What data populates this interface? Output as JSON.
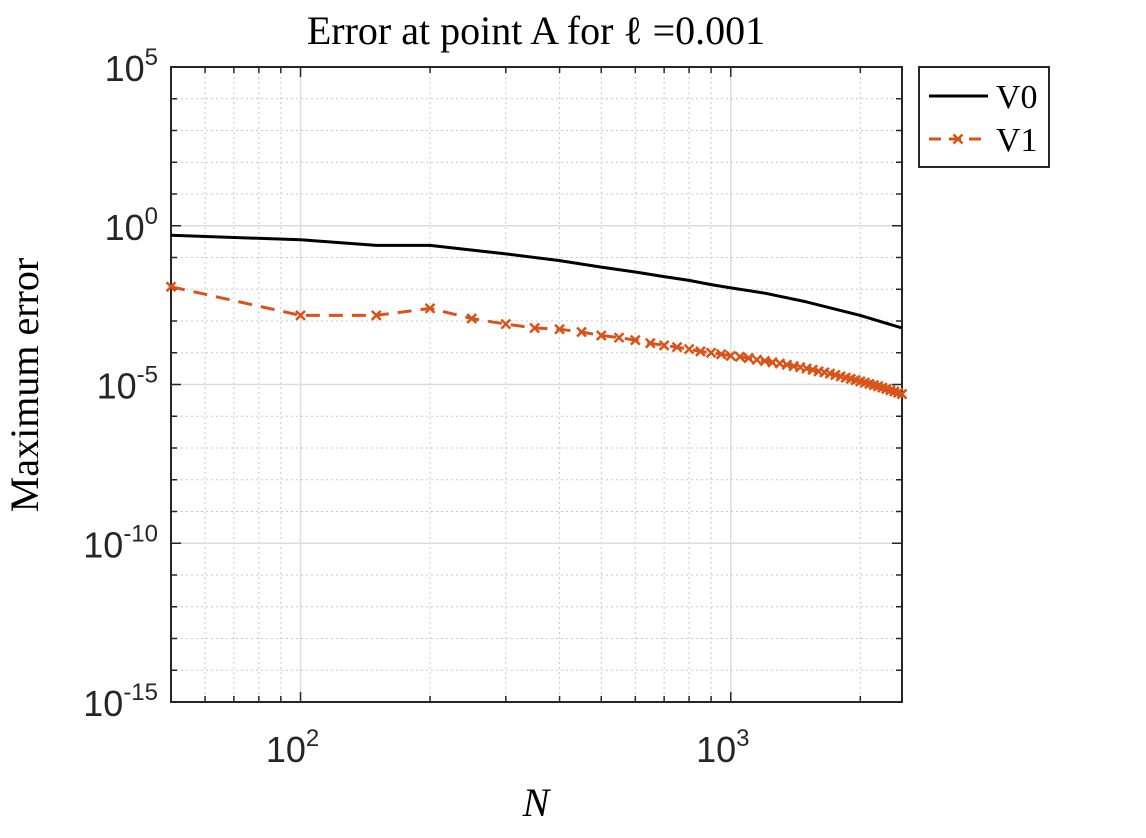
{
  "chart_data": {
    "type": "line",
    "title": "Error at point A for ℓ =0.001",
    "xlabel": "N",
    "ylabel": "Maximum error",
    "xscale": "log",
    "yscale": "log",
    "xlim": [
      50,
      2500
    ],
    "ylim": [
      1e-15,
      100000
    ],
    "grid": true,
    "legend_position": "outside-top-right",
    "x_ticks": [
      {
        "value": 100,
        "base": "10",
        "exp": "2"
      },
      {
        "value": 1000,
        "base": "10",
        "exp": "3"
      }
    ],
    "y_ticks": [
      {
        "value": 1e-15,
        "base": "10",
        "exp": "-15"
      },
      {
        "value": 1e-10,
        "base": "10",
        "exp": "-10"
      },
      {
        "value": 1e-05,
        "base": "10",
        "exp": "-5"
      },
      {
        "value": 1,
        "base": "10",
        "exp": "0"
      },
      {
        "value": 100000,
        "base": "10",
        "exp": "5"
      }
    ],
    "series": [
      {
        "name": "V0",
        "color": "#000000",
        "line": "solid",
        "marker": "none",
        "x": [
          50,
          100,
          150,
          200,
          300,
          400,
          500,
          600,
          700,
          800,
          900,
          1000,
          1200,
          1500,
          2000,
          2500
        ],
        "y": [
          0.5,
          0.36,
          0.24,
          0.24,
          0.13,
          0.08,
          0.05,
          0.035,
          0.025,
          0.019,
          0.014,
          0.011,
          0.0075,
          0.004,
          0.0015,
          0.0006
        ]
      },
      {
        "name": "V1",
        "color": "#d95319",
        "line": "dashed",
        "marker": "x",
        "x": [
          50,
          100,
          150,
          200,
          250,
          300,
          350,
          400,
          450,
          500,
          550,
          600,
          650,
          700,
          750,
          800,
          850,
          900,
          950,
          1000,
          1050,
          1100,
          1150,
          1200,
          1250,
          1300,
          1350,
          1400,
          1450,
          1500,
          1550,
          1600,
          1650,
          1700,
          1750,
          1800,
          1850,
          1900,
          1950,
          2000,
          2050,
          2100,
          2150,
          2200,
          2250,
          2300,
          2350,
          2400,
          2450,
          2500
        ],
        "y": [
          0.012,
          0.0015,
          0.0015,
          0.0025,
          0.0012,
          0.0008,
          0.0006,
          0.00055,
          0.00045,
          0.00035,
          0.0003,
          0.00025,
          0.0002,
          0.00017,
          0.00015,
          0.00013,
          0.00011,
          0.0001,
          9e-05,
          8e-05,
          7.5e-05,
          6.8e-05,
          6e-05,
          5.5e-05,
          5e-05,
          4.6e-05,
          4.2e-05,
          3.8e-05,
          3.5e-05,
          3.2e-05,
          2.9e-05,
          2.6e-05,
          2.4e-05,
          2.2e-05,
          2e-05,
          1.8e-05,
          1.65e-05,
          1.5e-05,
          1.38e-05,
          1.25e-05,
          1.15e-05,
          1.05e-05,
          9.6e-06,
          8.8e-06,
          8e-06,
          7.3e-06,
          6.6e-06,
          6e-06,
          5.5e-06,
          5e-06
        ]
      }
    ]
  }
}
